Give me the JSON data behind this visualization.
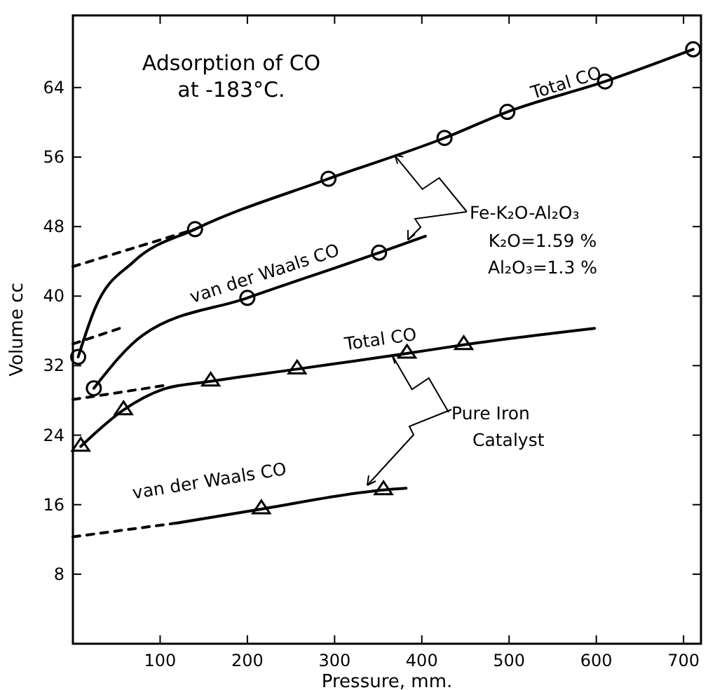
{
  "chart_data": {
    "type": "line",
    "title": "Adsorption of CO at -183°C.",
    "xlabel": "Pressure, mm.",
    "ylabel": "Volume cc",
    "xlim": [
      0,
      720
    ],
    "ylim": [
      0,
      72.3
    ],
    "xticks": [
      100,
      200,
      300,
      400,
      500,
      600,
      700
    ],
    "yticks": [
      8,
      16,
      24,
      32,
      40,
      48,
      56,
      64
    ],
    "grid": false,
    "series": [
      {
        "color": "#000000",
        "x": [
          6,
          25,
          70,
          140,
          293,
          426,
          498,
          610,
          711
        ],
        "values": [
          33,
          38.5,
          44,
          47.7,
          53.5,
          58.2,
          61.2,
          64.7,
          68.4
        ],
        "marker": "none"
      },
      {
        "color": "#000000",
        "x": [
          6,
          140,
          293,
          426,
          498,
          610,
          711
        ],
        "values": [
          33,
          47.7,
          53.5,
          58.2,
          61.2,
          64.7,
          68.4
        ],
        "type": "scatter",
        "marker": "circle"
      },
      {
        "color": "#000000",
        "x": [
          0,
          140
        ],
        "values": [
          43.4,
          47.7
        ],
        "line_style": "dashed",
        "marker": "none"
      },
      {
        "color": "#000000",
        "x": [
          24,
          80,
          200,
          351,
          404
        ],
        "values": [
          29.4,
          35.5,
          39.8,
          45.0,
          46.9
        ],
        "marker": "none"
      },
      {
        "color": "#000000",
        "x": [
          24,
          200,
          351
        ],
        "values": [
          29.4,
          39.8,
          45.0
        ],
        "type": "scatter",
        "marker": "circle"
      },
      {
        "color": "#000000",
        "x": [
          0,
          60
        ],
        "values": [
          34.5,
          36.5
        ],
        "line_style": "dashed",
        "marker": "none"
      },
      {
        "color": "#000000",
        "x": [
          9,
          58,
          104,
          158,
          257,
          383,
          448,
          598
        ],
        "values": [
          22.7,
          26.9,
          29.3,
          30.2,
          31.6,
          33.4,
          34.4,
          36.3
        ],
        "marker": "none"
      },
      {
        "color": "#000000",
        "x": [
          9,
          58,
          158,
          257,
          383,
          448
        ],
        "values": [
          22.7,
          26.9,
          30.2,
          31.6,
          33.4,
          34.4
        ],
        "type": "scatter",
        "marker": "triangle"
      },
      {
        "color": "#000000",
        "x": [
          0,
          104
        ],
        "values": [
          28.1,
          29.7
        ],
        "line_style": "dashed",
        "marker": "none"
      },
      {
        "color": "#000000",
        "x": [
          120,
          216,
          356,
          382
        ],
        "values": [
          13.9,
          15.5,
          17.7,
          17.9
        ],
        "marker": "none"
      },
      {
        "color": "#000000",
        "x": [
          216,
          356
        ],
        "values": [
          15.5,
          17.7
        ],
        "type": "scatter",
        "marker": "triangle"
      },
      {
        "color": "#000000",
        "x": [
          0,
          120
        ],
        "values": [
          12.3,
          13.9
        ],
        "line_style": "dashed",
        "marker": "none"
      }
    ],
    "annotations": [
      "Total CO",
      "van der Waals CO",
      "Total CO",
      "van der Waals CO",
      {
        "text": "Fe-K₂O-Al₂O₃",
        "x": 369,
        "y": 56.2
      },
      "K₂O=1.59 %",
      "Al₂O₃=1.3 %",
      {
        "text": "Pure Iron",
        "x": 366,
        "y": 33.2
      },
      "Catalyst"
    ]
  }
}
